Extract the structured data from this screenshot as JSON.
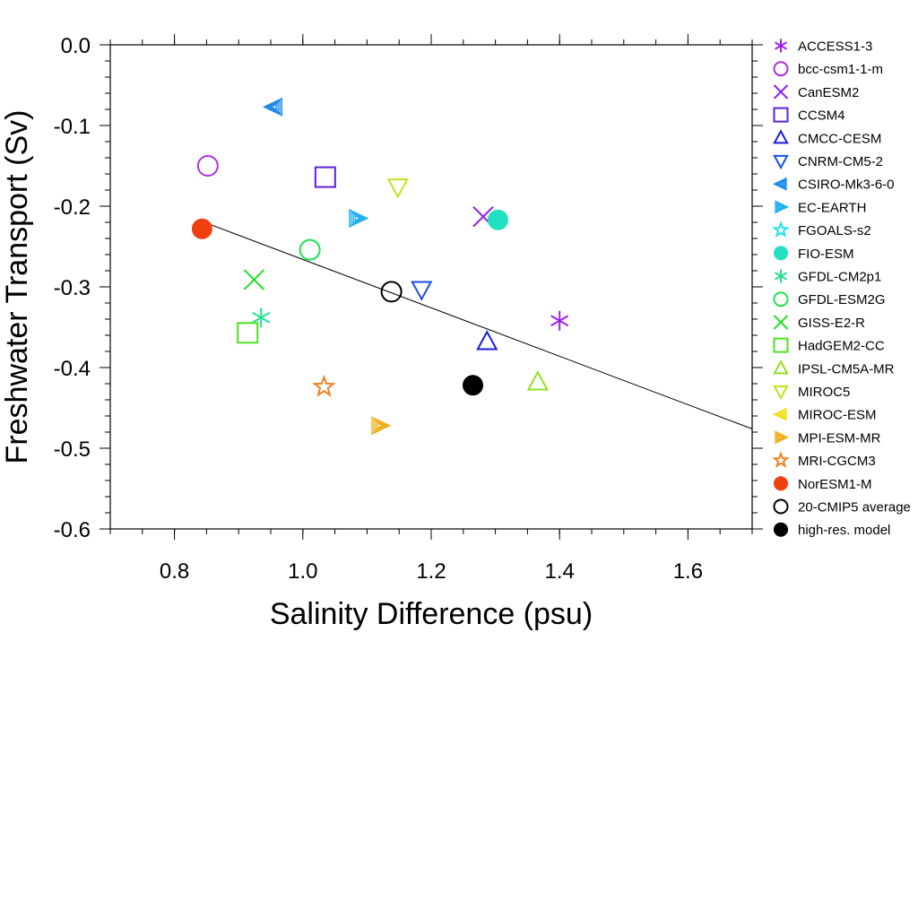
{
  "chart_data": {
    "type": "scatter",
    "xlabel": "Salinity Difference (psu)",
    "ylabel": "Freshwater Transport (Sv)",
    "xlim": [
      0.7,
      1.7
    ],
    "ylim": [
      -0.6,
      0.0
    ],
    "x_ticks": [
      "0.8",
      "1.0",
      "1.2",
      "1.4",
      "1.6"
    ],
    "y_ticks": [
      "0.0",
      "-0.1",
      "-0.2",
      "-0.3",
      "-0.4",
      "-0.5",
      "-0.6"
    ],
    "legend_position": "right",
    "fit_line": {
      "x": [
        0.84,
        1.7
      ],
      "y": [
        -0.218,
        -0.476
      ]
    },
    "series": [
      {
        "name": "ACCESS1-3",
        "marker": "asterisk",
        "color": "#a020f0",
        "x": 1.4,
        "y": -0.342
      },
      {
        "name": "bcc-csm1-1-m",
        "marker": "circle-open",
        "color": "#b030e0",
        "x": 0.852,
        "y": -0.15
      },
      {
        "name": "CanESM2",
        "marker": "x",
        "color": "#8a1fe8",
        "x": 1.281,
        "y": -0.213
      },
      {
        "name": "CCSM4",
        "marker": "square-open",
        "color": "#5a22e0",
        "x": 1.035,
        "y": -0.164
      },
      {
        "name": "CMCC-CESM",
        "marker": "triangle-up-open",
        "color": "#1a1ae0",
        "x": 1.287,
        "y": -0.368
      },
      {
        "name": "CNRM-CM5-2",
        "marker": "triangle-down-open",
        "color": "#1a4fe8",
        "x": 1.185,
        "y": -0.303
      },
      {
        "name": "CSIRO-Mk3-6-0",
        "marker": "triangle-left-hatched",
        "color": "#1f8ae8",
        "x": 0.955,
        "y": -0.077
      },
      {
        "name": "EC-EARTH",
        "marker": "triangle-right-hatched",
        "color": "#20b0f0",
        "x": 1.085,
        "y": -0.215
      },
      {
        "name": "FGOALS-s2",
        "marker": "star-open",
        "color": "#1ee0f0",
        "x": null,
        "y": null
      },
      {
        "name": "FIO-ESM",
        "marker": "circle-filled",
        "color": "#20e0c0",
        "x": 1.304,
        "y": -0.217
      },
      {
        "name": "GFDL-CM2p1",
        "marker": "asterisk",
        "color": "#20e090",
        "x": 0.935,
        "y": -0.338
      },
      {
        "name": "GFDL-ESM2G",
        "marker": "circle-open",
        "color": "#20e050",
        "x": 1.011,
        "y": -0.254
      },
      {
        "name": "GISS-E2-R",
        "marker": "x",
        "color": "#20e020",
        "x": 0.924,
        "y": -0.291
      },
      {
        "name": "HadGEM2-CC",
        "marker": "square-open",
        "color": "#50e020",
        "x": 0.914,
        "y": -0.357
      },
      {
        "name": "IPSL-CM5A-MR",
        "marker": "triangle-up-open",
        "color": "#90e020",
        "x": 1.366,
        "y": -0.418
      },
      {
        "name": "MIROC5",
        "marker": "triangle-down-open",
        "color": "#c8e020",
        "x": 1.148,
        "y": -0.176
      },
      {
        "name": "MIROC-ESM",
        "marker": "triangle-left-hatched",
        "color": "#f0e020",
        "x": null,
        "y": null
      },
      {
        "name": "MPI-ESM-MR",
        "marker": "triangle-right-hatched",
        "color": "#f0b020",
        "x": 1.12,
        "y": -0.472
      },
      {
        "name": "MRI-CGCM3",
        "marker": "star-open",
        "color": "#f08020",
        "x": 1.033,
        "y": -0.424
      },
      {
        "name": "NorESM1-M",
        "marker": "circle-filled",
        "color": "#f04010",
        "x": 0.843,
        "y": -0.228
      },
      {
        "name": "20-CMIP5 average",
        "marker": "circle-open",
        "color": "#000000",
        "x": 1.138,
        "y": -0.306
      },
      {
        "name": "high-res. model",
        "marker": "circle-filled",
        "color": "#000000",
        "x": 1.265,
        "y": -0.422
      }
    ]
  }
}
